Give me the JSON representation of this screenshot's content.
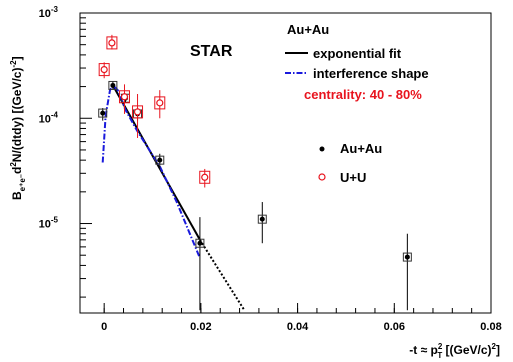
{
  "chart_data": {
    "type": "scatter",
    "xlim": [
      -0.005,
      0.08
    ],
    "ylim_log10": [
      -5.85,
      -3
    ],
    "x_ticks": [
      {
        "value": 0,
        "label": "0"
      },
      {
        "value": 0.02,
        "label": "0.02"
      },
      {
        "value": 0.04,
        "label": "0.04"
      },
      {
        "value": 0.06,
        "label": "0.06"
      },
      {
        "value": 0.08,
        "label": "0.08"
      }
    ],
    "y_ticks": [
      {
        "exp": -5,
        "base": "10",
        "sup": "-5"
      },
      {
        "exp": -4,
        "base": "10",
        "sup": "-4"
      },
      {
        "exp": -3,
        "base": "10",
        "sup": "-3"
      }
    ],
    "xlabel": {
      "pre": "-t ≈ p",
      "sup": "2",
      "sub": "T",
      "post": " [(GeV/c)",
      "post_sup": "2",
      "end": "]"
    },
    "ylabel": {
      "pre": "B",
      "sub": "e⁺e⁻",
      "mid": "d",
      "sup": "2",
      "post": "N/(dtdy) [(GeV/c)",
      "post_sup": "-2",
      "end": "]"
    },
    "star_label": "STAR",
    "legend_title": "Au+Au",
    "legend_lines": [
      {
        "label": "exponential fit",
        "color": "#000000",
        "style": "solid"
      },
      {
        "label": "interference shape",
        "color": "#1a1adc",
        "style": "dashdot"
      }
    ],
    "centrality_label": "centrality: 40 - 80%",
    "centrality_color": "#e8141e",
    "legend_markers": [
      {
        "label": "Au+Au",
        "marker": "filled-circle",
        "color": "#000000"
      },
      {
        "label": "U+U",
        "marker": "open-circle",
        "color": "#e8141e"
      }
    ],
    "series": [
      {
        "name": "Au+Au",
        "color": "#000000",
        "points": [
          {
            "x": -0.0003,
            "y": 0.000112,
            "y_lo": 9.5e-05,
            "y_hi": 0.000125
          },
          {
            "x": 0.0018,
            "y": 0.000205,
            "y_lo": 0.00019,
            "y_hi": 0.000225
          },
          {
            "x": 0.0044,
            "y": 0.000155,
            "y_lo": 0.00014,
            "y_hi": 0.00017
          },
          {
            "x": 0.0069,
            "y": 0.00011,
            "y_lo": 9.5e-05,
            "y_hi": 0.000125
          },
          {
            "x": 0.0115,
            "y": 4e-05,
            "y_lo": 3.3e-05,
            "y_hi": 4.6e-05
          },
          {
            "x": 0.0198,
            "y": 6.5e-06,
            "y_lo": 1.5e-06,
            "y_hi": 1.15e-05
          },
          {
            "x": 0.0327,
            "y": 1.1e-05,
            "y_lo": 6.5e-06,
            "y_hi": 1.6e-05
          },
          {
            "x": 0.0627,
            "y": 4.8e-06,
            "y_lo": 1.5e-06,
            "y_hi": 8e-06
          }
        ]
      },
      {
        "name": "U+U",
        "color": "#e8141e",
        "points": [
          {
            "x": 0.0,
            "y": 0.00029,
            "y_lo": 0.00024,
            "y_hi": 0.00034
          },
          {
            "x": 0.0016,
            "y": 0.00052,
            "y_lo": 0.00045,
            "y_hi": 0.00062
          },
          {
            "x": 0.0042,
            "y": 0.00016,
            "y_lo": 0.00011,
            "y_hi": 0.00021
          },
          {
            "x": 0.0069,
            "y": 0.000115,
            "y_lo": 6.5e-05,
            "y_hi": 0.00017
          },
          {
            "x": 0.0115,
            "y": 0.00014,
            "y_lo": 0.0001,
            "y_hi": 0.000185
          },
          {
            "x": 0.0208,
            "y": 2.75e-05,
            "y_lo": 2.2e-05,
            "y_hi": 3.3e-05
          }
        ]
      }
    ],
    "curves": [
      {
        "name": "exponential fit",
        "color": "#000000",
        "style": "solid",
        "points": [
          [
            0.0018,
            0.000205
          ],
          [
            0.0198,
            7e-06
          ]
        ]
      },
      {
        "name": "exponential fit (extrapolation)",
        "color": "#000000",
        "style": "dotted",
        "points": [
          [
            0.0198,
            7e-06
          ],
          [
            0.029,
            1.5e-06
          ]
        ]
      },
      {
        "name": "interference shape",
        "color": "#1a1adc",
        "style": "dashdot",
        "points": [
          [
            -0.0003,
            3.8e-05
          ],
          [
            0.0003,
            0.000105
          ],
          [
            0.0012,
            0.000185
          ],
          [
            0.0018,
            0.000205
          ],
          [
            0.0028,
            0.000185
          ],
          [
            0.0044,
            0.00012
          ],
          [
            0.0069,
            7.5e-05
          ],
          [
            0.0115,
            3.5e-05
          ],
          [
            0.015,
            1.6e-05
          ],
          [
            0.0198,
            4.7e-06
          ]
        ]
      }
    ]
  }
}
